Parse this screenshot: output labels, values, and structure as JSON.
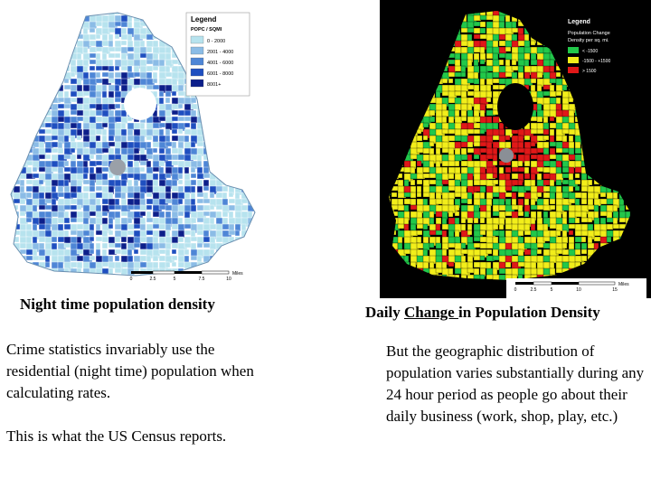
{
  "left_map": {
    "legend_title": "Legend",
    "legend_subtitle": "POPC / SQMI",
    "legend_items": [
      {
        "label": "0 - 2000",
        "color": "#b7e3ee"
      },
      {
        "label": "2001 - 4000",
        "color": "#8bbce6"
      },
      {
        "label": "4001 - 6000",
        "color": "#4e86d6"
      },
      {
        "label": "6001 - 8000",
        "color": "#1f4fc0"
      },
      {
        "label": "8001+",
        "color": "#0d1f8a"
      }
    ],
    "scale_ticks": [
      "0",
      "2.5",
      "5",
      "7.5",
      "10"
    ],
    "scale_unit": "Miles"
  },
  "right_map": {
    "legend_title": "Legend",
    "legend_subtitle": "Population Change",
    "legend_subtitle2": "Density per sq. mi.",
    "legend_items": [
      {
        "label": "< -1500",
        "color": "#22c84a"
      },
      {
        "label": "-1500 - +1500",
        "color": "#f2ee1a"
      },
      {
        "label": "> 1500",
        "color": "#e01818"
      }
    ],
    "scale_ticks": [
      "0",
      "2.5",
      "5",
      "10",
      "15"
    ],
    "scale_unit": "Miles"
  },
  "left_caption": "Night time population density",
  "right_caption_pre": "Daily ",
  "right_caption_underlined": "Change ",
  "right_caption_post": "in Population Density",
  "left_paragraphs": [
    "Crime statistics invariably use the residential (night time) population when calculating rates.",
    "This is what the US Census reports."
  ],
  "right_paragraph": "But the geographic distribution of population varies substantially during any 24 hour period as people go about their daily business (work, shop, play, etc.)"
}
